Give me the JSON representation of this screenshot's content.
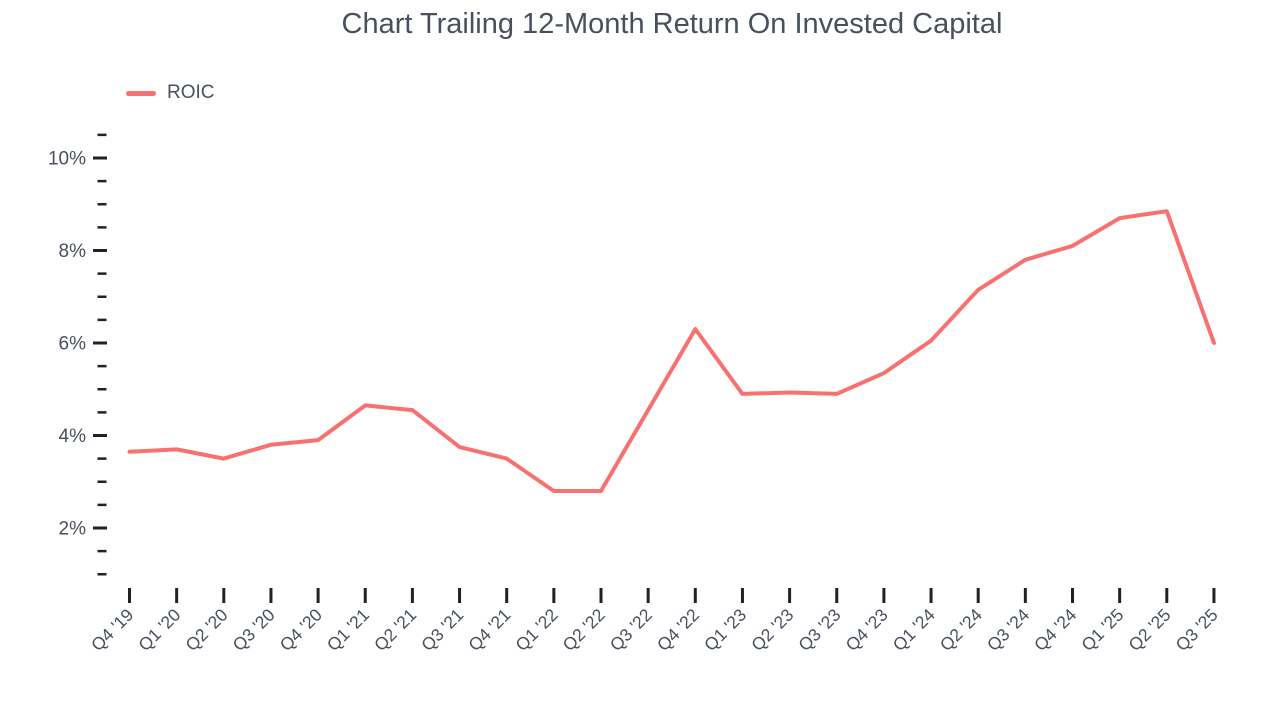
{
  "header": {
    "title": "Chart Trailing 12-Month Return On Invested Capital"
  },
  "legend": {
    "items": [
      {
        "label": "ROIC",
        "color": "#F87171"
      }
    ]
  },
  "colors": {
    "line": "#F87171",
    "text": "#48505E",
    "tick": "#1F2329",
    "background": "#ffffff"
  },
  "chart_data": {
    "type": "line",
    "title": "Chart Trailing 12-Month Return On Invested Capital",
    "xlabel": "",
    "ylabel": "",
    "legend_position": "top-left",
    "grid": false,
    "categories": [
      "Q4 '19",
      "Q1 '20",
      "Q2 '20",
      "Q3 '20",
      "Q4 '20",
      "Q1 '21",
      "Q2 '21",
      "Q3 '21",
      "Q4 '21",
      "Q1 '22",
      "Q2 '22",
      "Q3 '22",
      "Q4 '22",
      "Q1 '23",
      "Q2 '23",
      "Q3 '23",
      "Q4 '23",
      "Q1 '24",
      "Q2 '24",
      "Q3 '24",
      "Q4 '24",
      "Q1 '25",
      "Q2 '25",
      "Q3 '25"
    ],
    "series": [
      {
        "name": "ROIC",
        "color": "#F87171",
        "unit": "%",
        "values": [
          3.65,
          3.7,
          3.5,
          3.8,
          3.9,
          4.65,
          4.55,
          3.75,
          3.5,
          2.8,
          2.8,
          4.55,
          6.3,
          4.9,
          4.93,
          4.9,
          5.35,
          6.05,
          7.15,
          7.8,
          8.1,
          8.7,
          8.85,
          6.0
        ]
      }
    ],
    "y_axis": {
      "unit": "%",
      "range": [
        1,
        10.5
      ],
      "minor_tick_step": 0.5,
      "major_ticks": [
        {
          "value": 10,
          "label": "10%"
        },
        {
          "value": 8,
          "label": "8%"
        },
        {
          "value": 6,
          "label": "6%"
        },
        {
          "value": 4,
          "label": "4%"
        },
        {
          "value": 2,
          "label": "2%"
        }
      ]
    }
  }
}
